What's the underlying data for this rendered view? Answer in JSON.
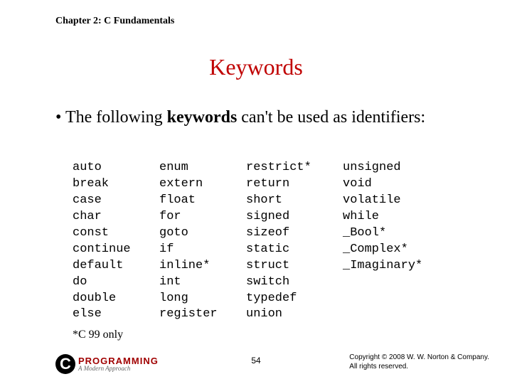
{
  "header": "Chapter 2: C Fundamentals",
  "title": "Keywords",
  "body_prefix": "• The following ",
  "body_bold": "keywords",
  "body_suffix": " can't be used as identifiers:",
  "columns": {
    "c1": [
      "auto",
      "break",
      "case",
      "char",
      "const",
      "continue",
      "default",
      "do",
      "double",
      "else"
    ],
    "c2": [
      "enum",
      "extern",
      "float",
      "for",
      "goto",
      "if",
      "inline*",
      "int",
      "long",
      "register"
    ],
    "c3": [
      "restrict*",
      "return",
      "short",
      "signed",
      "sizeof",
      "static",
      "struct",
      "switch",
      "typedef",
      "union"
    ],
    "c4": [
      "unsigned",
      "void",
      "volatile",
      "while",
      "_Bool*",
      "_Complex*",
      "_Imaginary*"
    ]
  },
  "note": "*C 99 only",
  "logo": {
    "c": "C",
    "main": "PROGRAMMING",
    "sub": "A Modern Approach"
  },
  "page": "54",
  "copyright_l1": "Copyright © 2008 W. W. Norton & Company.",
  "copyright_l2": "All rights reserved."
}
